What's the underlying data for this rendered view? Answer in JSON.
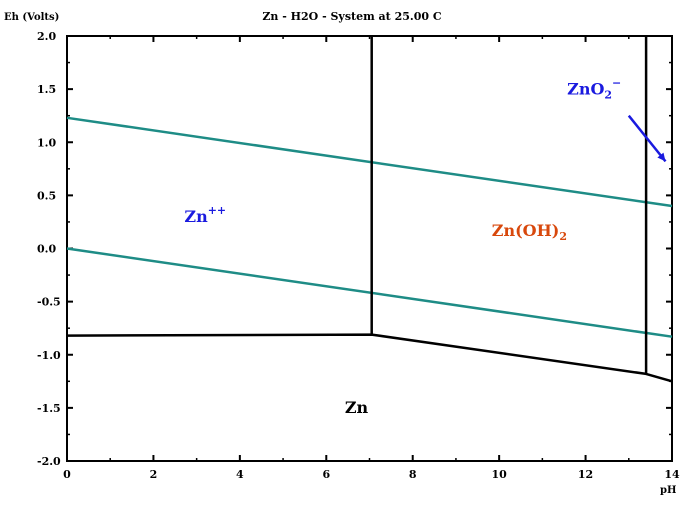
{
  "chart_data": {
    "type": "line",
    "title": "Zn - H2O - System at 25.00 C",
    "xlabel": "pH",
    "ylabel": "Eh (Volts)",
    "xlim": [
      0,
      14
    ],
    "ylim": [
      -2.0,
      2.0
    ],
    "x_ticks": [
      0,
      2,
      4,
      6,
      8,
      10,
      12,
      14
    ],
    "x_tick_labels": [
      "0",
      "2",
      "4",
      "6",
      "8",
      "10",
      "12",
      "14"
    ],
    "y_ticks": [
      2.0,
      1.5,
      1.0,
      0.5,
      0.0,
      -0.5,
      -1.0,
      -1.5,
      -2.0
    ],
    "y_tick_labels": [
      "2.0",
      "1.5",
      "1.0",
      "0.5",
      "0.0",
      "-0.5",
      "-1.0",
      "-1.5",
      "-2.0"
    ],
    "series": [
      {
        "color": "#1e8c86",
        "points": [
          [
            0,
            1.23
          ],
          [
            14,
            0.4
          ]
        ]
      },
      {
        "color": "#1e8c86",
        "points": [
          [
            0,
            0.0
          ],
          [
            14,
            -0.83
          ]
        ]
      },
      {
        "color": "#000000",
        "points": [
          [
            0,
            -0.82
          ],
          [
            7.05,
            -0.81
          ],
          [
            13.4,
            -1.18
          ],
          [
            14,
            -1.25
          ]
        ]
      },
      {
        "color": "#000000",
        "points": [
          [
            7.05,
            -0.81
          ],
          [
            7.05,
            2.0
          ]
        ]
      },
      {
        "color": "#000000",
        "points": [
          [
            13.4,
            -1.18
          ],
          [
            13.4,
            2.0
          ]
        ]
      }
    ],
    "annotations": [
      {
        "text": "Zn++",
        "base": "Zn",
        "sup": "++",
        "x": 3.2,
        "y": 0.25,
        "color": "#1a1adf"
      },
      {
        "text": "Zn(OH)2",
        "base": "Zn(OH)",
        "sub": "2",
        "x": 10.7,
        "y": 0.12,
        "color": "#d8480c"
      },
      {
        "text": "ZnO2-",
        "base": "ZnO",
        "sub": "2",
        "sup": "−",
        "x": 12.2,
        "y": 1.45,
        "color": "#1a1adf"
      },
      {
        "text": "Zn",
        "x": 6.7,
        "y": -1.55,
        "color": "#000000"
      }
    ],
    "arrow": {
      "from": [
        13.0,
        1.25
      ],
      "to": [
        13.85,
        0.82
      ],
      "color": "#1a1adf"
    },
    "grid": false,
    "legend": "none"
  }
}
